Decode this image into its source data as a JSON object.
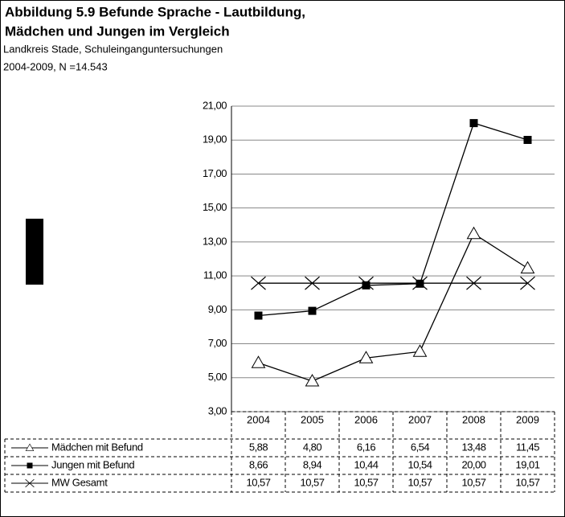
{
  "chart_data": {
    "type": "line",
    "title": "Abbildung 5.9    Befunde Sprache - Lautbildung,",
    "title_line2": "Mädchen und Jungen im Vergleich",
    "subtitle": "Landkreis Stade, Schuleinganguntersuchungen",
    "subtitle_line2": "2004-2009, N =14.543",
    "categories": [
      "2004",
      "2005",
      "2006",
      "2007",
      "2008",
      "2009"
    ],
    "series": [
      {
        "name": "Mädchen mit Befund",
        "color": "#000000",
        "marker": "triangle",
        "values": [
          5.88,
          4.8,
          6.16,
          6.54,
          13.48,
          11.45
        ],
        "value_labels": [
          "5,88",
          "4,80",
          "6,16",
          "6,54",
          "13,48",
          "11,45"
        ]
      },
      {
        "name": "Jungen mit Befund",
        "color": "#000000",
        "marker": "square",
        "values": [
          8.66,
          8.94,
          10.44,
          10.54,
          20.0,
          19.01
        ],
        "value_labels": [
          "8,66",
          "8,94",
          "10,44",
          "10,54",
          "20,00",
          "19,01"
        ]
      },
      {
        "name": "MW Gesamt",
        "color": "#000000",
        "marker": "x",
        "values": [
          10.57,
          10.57,
          10.57,
          10.57,
          10.57,
          10.57
        ],
        "value_labels": [
          "10,57",
          "10,57",
          "10,57",
          "10,57",
          "10,57",
          "10,57"
        ]
      }
    ],
    "ylim": [
      3,
      21
    ],
    "yticks": [
      {
        "value": 3,
        "label": "3,00"
      },
      {
        "value": 5,
        "label": "5,00"
      },
      {
        "value": 7,
        "label": "7,00"
      },
      {
        "value": 9,
        "label": "9,00"
      },
      {
        "value": 11,
        "label": "11,00"
      },
      {
        "value": 13,
        "label": "13,00"
      },
      {
        "value": 15,
        "label": "15,00"
      },
      {
        "value": 17,
        "label": "17,00"
      },
      {
        "value": 19,
        "label": "19,00"
      },
      {
        "value": 21,
        "label": "21,00"
      }
    ],
    "grid": true
  }
}
